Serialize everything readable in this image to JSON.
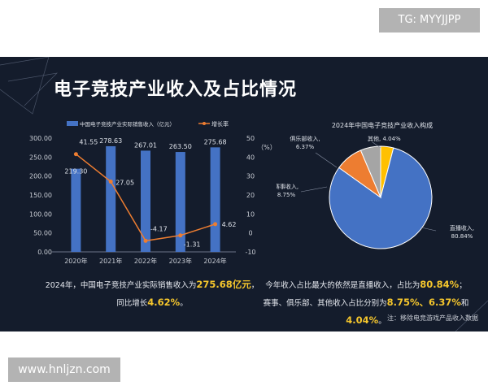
{
  "watermark_top": "TG: MYYJJPP",
  "watermark_bottom": "www.hnljzn.com",
  "title": "电子竞技产业收入及占比情况",
  "chart_data": [
    {
      "type": "bar+line",
      "categories": [
        "2020年",
        "2021年",
        "2022年",
        "2023年",
        "2024年"
      ],
      "series": [
        {
          "name": "中国电子竞技产业实际销售收入（亿元）",
          "type": "bar",
          "values": [
            219.3,
            278.63,
            267.01,
            263.5,
            275.68
          ],
          "labels": [
            "219.30",
            "278.63",
            "267.01",
            "263.50",
            "275.68"
          ],
          "color": "#4472c4"
        },
        {
          "name": "增长率",
          "type": "line",
          "values": [
            41.55,
            27.05,
            -4.17,
            -1.31,
            4.62
          ],
          "labels": [
            "41.55",
            "27.05",
            "-4.17",
            "-1.31",
            "4.62"
          ],
          "color": "#ed7d31"
        }
      ],
      "ylim": [
        0,
        300
      ],
      "yticks": [
        "0.00",
        "50.00",
        "100.00",
        "150.00",
        "200.00",
        "250.00",
        "300.00"
      ],
      "y2lim": [
        -10,
        50
      ],
      "y2ticks": [
        "-10",
        "0",
        "10",
        "20",
        "30",
        "40",
        "50"
      ],
      "y2label": "（%）",
      "legend": "top"
    },
    {
      "type": "pie",
      "title": "2024年中国电子竞技产业收入构成",
      "slices": [
        {
          "label": "其他",
          "value": 4.04,
          "text": "其他, 4.04%",
          "color": "#ffc000"
        },
        {
          "label": "直播收入",
          "value": 80.84,
          "text": [
            "直播收入,",
            "80.84%"
          ],
          "color": "#4472c4"
        },
        {
          "label": "赛事收入",
          "value": 8.75,
          "text": [
            "赛事收入,",
            "8.75%"
          ],
          "color": "#ed7d31"
        },
        {
          "label": "俱乐部收入",
          "value": 6.37,
          "text": [
            "俱乐部收入,",
            "6.37%"
          ],
          "color": "#a5a5a5"
        }
      ]
    }
  ],
  "summary_left": {
    "a": "2024年，中国电子竞技产业实际销售收入为",
    "b": "275.68亿元",
    "c": "，",
    "d": "同比增长",
    "e": "4.62%",
    "f": "。"
  },
  "summary_right": {
    "a": "今年收入占比最大的依然是直播收入，占比为",
    "b": "80.84%",
    "c": "；",
    "d": "赛事、俱乐部、其他收入占比分别为",
    "e": "8.75%、6.37%",
    "f": "和",
    "g": "4.04%",
    "h": "。"
  },
  "note": "注：移除电竞游戏产品收入数据"
}
